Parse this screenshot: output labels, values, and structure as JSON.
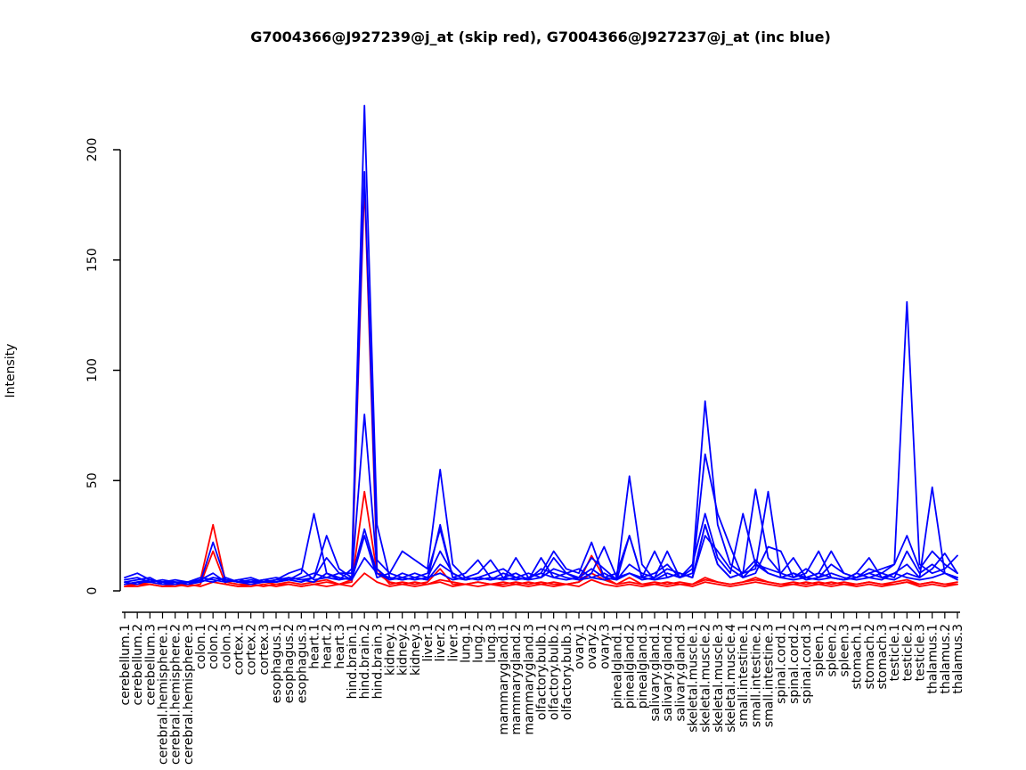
{
  "chart_data": {
    "type": "line",
    "title": "G7004366@J927239@j_at (skip red), G7004366@J927237@j_at (inc blue)",
    "xlabel": "",
    "ylabel": "Intensity",
    "ylim": [
      0,
      225
    ],
    "yticks": [
      0,
      50,
      100,
      150,
      200
    ],
    "grid": false,
    "legend_position": "none",
    "group_colors": {
      "skip": "#FF0000",
      "inc": "#0000FF"
    },
    "categories": [
      "cerebellum.1",
      "cerebellum.2",
      "cerebellum.3",
      "cerebral.hemisphere.1",
      "cerebral.hemisphere.2",
      "cerebral.hemisphere.3",
      "colon.1",
      "colon.2",
      "colon.3",
      "cortex.1",
      "cortex.2",
      "cortex.3",
      "esophagus.1",
      "esophagus.2",
      "esophagus.3",
      "heart.1",
      "heart.2",
      "heart.3",
      "hind.brain.1",
      "hind.brain.2",
      "hind.brain.3",
      "kidney.1",
      "kidney.2",
      "kidney.3",
      "liver.1",
      "liver.2",
      "liver.3",
      "lung.1",
      "lung.2",
      "lung.3",
      "mammarygland.1",
      "mammarygland.2",
      "mammarygland.3",
      "olfactory.bulb.1",
      "olfactory.bulb.2",
      "olfactory.bulb.3",
      "ovary.1",
      "ovary.2",
      "ovary.3",
      "pinealgland.1",
      "pinealgland.2",
      "pinealgland.3",
      "salivary.gland.1",
      "salivary.gland.2",
      "salivary.gland.3",
      "skeletal.muscle.1",
      "skeletal.muscle.2",
      "skeletal.muscle.3",
      "skeletal.muscle.4",
      "small.intestine.1",
      "small.intestine.2",
      "small.intestine.3",
      "spinal.cord.1",
      "spinal.cord.2",
      "spinal.cord.3",
      "spleen.1",
      "spleen.2",
      "spleen.3",
      "stomach.1",
      "stomach.2",
      "stomach.3",
      "testicle.1",
      "testicle.2",
      "testicle.3",
      "thalamus.1",
      "thalamus.2",
      "thalamus.3"
    ],
    "series": [
      {
        "name": "skip-red-1",
        "group": "skip",
        "color": "#FF0000",
        "values": [
          3,
          3,
          4,
          3,
          3,
          3,
          5,
          30,
          4,
          3,
          3,
          4,
          3,
          4,
          3,
          4,
          5,
          3,
          4,
          45,
          8,
          4,
          3,
          4,
          3,
          5,
          4,
          3,
          4,
          3,
          4,
          3,
          4,
          3,
          4,
          3,
          4,
          8,
          5,
          3,
          4,
          3,
          4,
          3,
          4,
          3,
          5,
          4,
          3,
          4,
          5,
          4,
          3,
          4,
          3,
          4,
          3,
          4,
          3,
          4,
          3,
          4,
          5,
          3,
          4,
          3,
          4
        ]
      },
      {
        "name": "skip-red-2",
        "group": "skip",
        "color": "#FF0000",
        "values": [
          2,
          3,
          3,
          2,
          3,
          2,
          3,
          18,
          3,
          2,
          3,
          2,
          3,
          3,
          2,
          3,
          4,
          3,
          5,
          185,
          10,
          3,
          4,
          3,
          4,
          10,
          3,
          3,
          4,
          3,
          3,
          4,
          3,
          4,
          3,
          3,
          4,
          16,
          6,
          3,
          6,
          3,
          3,
          4,
          3,
          3,
          6,
          4,
          3,
          4,
          6,
          4,
          3,
          3,
          4,
          3,
          4,
          3,
          3,
          4,
          3,
          3,
          4,
          3,
          4,
          3,
          3
        ]
      },
      {
        "name": "skip-red-3",
        "group": "skip",
        "color": "#FF0000",
        "values": [
          2,
          2,
          3,
          2,
          2,
          3,
          2,
          4,
          3,
          2,
          2,
          3,
          2,
          3,
          2,
          3,
          2,
          3,
          2,
          8,
          4,
          2,
          3,
          2,
          3,
          4,
          2,
          3,
          2,
          3,
          2,
          3,
          2,
          3,
          2,
          3,
          2,
          5,
          3,
          2,
          3,
          2,
          3,
          2,
          3,
          2,
          4,
          3,
          2,
          3,
          4,
          3,
          2,
          3,
          2,
          3,
          2,
          3,
          2,
          3,
          2,
          3,
          4,
          2,
          3,
          2,
          3
        ]
      },
      {
        "name": "inc-blue-1",
        "group": "inc",
        "color": "#0000FF",
        "values": [
          4,
          5,
          6,
          3,
          3,
          4,
          4,
          22,
          5,
          4,
          4,
          5,
          4,
          5,
          8,
          35,
          8,
          5,
          10,
          220,
          30,
          6,
          5,
          6,
          8,
          28,
          6,
          5,
          6,
          5,
          6,
          5,
          6,
          8,
          6,
          5,
          6,
          10,
          6,
          5,
          25,
          6,
          5,
          6,
          8,
          6,
          30,
          12,
          6,
          8,
          14,
          8,
          6,
          5,
          6,
          5,
          6,
          5,
          6,
          8,
          6,
          8,
          12,
          6,
          10,
          17,
          8
        ]
      },
      {
        "name": "inc-blue-2",
        "group": "inc",
        "color": "#0000FF",
        "values": [
          3,
          4,
          5,
          4,
          4,
          3,
          5,
          8,
          4,
          5,
          4,
          4,
          5,
          6,
          5,
          6,
          15,
          8,
          8,
          190,
          14,
          8,
          18,
          14,
          10,
          55,
          12,
          6,
          5,
          6,
          5,
          6,
          5,
          6,
          15,
          8,
          5,
          6,
          5,
          6,
          8,
          5,
          6,
          18,
          6,
          8,
          62,
          35,
          20,
          6,
          8,
          20,
          18,
          6,
          8,
          18,
          6,
          5,
          8,
          15,
          6,
          5,
          8,
          6,
          47,
          8,
          6
        ]
      },
      {
        "name": "inc-blue-3",
        "group": "inc",
        "color": "#0000FF",
        "values": [
          5,
          6,
          4,
          3,
          4,
          4,
          4,
          6,
          5,
          4,
          5,
          4,
          4,
          5,
          6,
          8,
          6,
          5,
          6,
          80,
          10,
          5,
          6,
          8,
          6,
          18,
          8,
          5,
          6,
          5,
          8,
          6,
          5,
          10,
          8,
          6,
          5,
          8,
          20,
          6,
          52,
          12,
          5,
          8,
          6,
          12,
          35,
          15,
          8,
          35,
          12,
          8,
          6,
          8,
          5,
          6,
          8,
          6,
          5,
          6,
          8,
          12,
          131,
          12,
          8,
          10,
          16
        ]
      },
      {
        "name": "inc-blue-4",
        "group": "inc",
        "color": "#0000FF",
        "values": [
          4,
          3,
          5,
          4,
          3,
          4,
          5,
          4,
          6,
          4,
          4,
          5,
          6,
          5,
          4,
          6,
          25,
          10,
          6,
          28,
          8,
          6,
          5,
          6,
          5,
          30,
          6,
          8,
          14,
          6,
          5,
          15,
          6,
          8,
          18,
          10,
          8,
          22,
          6,
          8,
          25,
          6,
          8,
          12,
          6,
          10,
          86,
          30,
          12,
          8,
          46,
          15,
          8,
          15,
          6,
          8,
          18,
          8,
          6,
          10,
          8,
          6,
          18,
          8,
          12,
          8,
          6
        ]
      },
      {
        "name": "inc-blue-5",
        "group": "inc",
        "color": "#0000FF",
        "values": [
          6,
          8,
          5,
          4,
          5,
          4,
          6,
          5,
          4,
          5,
          6,
          4,
          5,
          8,
          10,
          5,
          6,
          8,
          5,
          25,
          6,
          8,
          6,
          5,
          6,
          8,
          5,
          6,
          8,
          14,
          6,
          8,
          5,
          15,
          6,
          8,
          10,
          6,
          8,
          5,
          8,
          6,
          18,
          6,
          8,
          6,
          30,
          12,
          6,
          8,
          10,
          45,
          6,
          8,
          6,
          8,
          6,
          5,
          8,
          6,
          5,
          8,
          6,
          5,
          6,
          8,
          5
        ]
      },
      {
        "name": "inc-blue-6",
        "group": "inc",
        "color": "#0000FF",
        "values": [
          3,
          4,
          4,
          5,
          4,
          3,
          4,
          6,
          5,
          4,
          3,
          4,
          4,
          6,
          5,
          4,
          8,
          6,
          5,
          15,
          8,
          5,
          8,
          6,
          5,
          12,
          8,
          5,
          6,
          8,
          10,
          6,
          8,
          6,
          10,
          8,
          6,
          15,
          10,
          5,
          12,
          8,
          6,
          10,
          8,
          6,
          25,
          18,
          10,
          6,
          12,
          10,
          8,
          6,
          10,
          6,
          12,
          8,
          6,
          8,
          10,
          12,
          25,
          10,
          18,
          12,
          8
        ]
      }
    ]
  }
}
